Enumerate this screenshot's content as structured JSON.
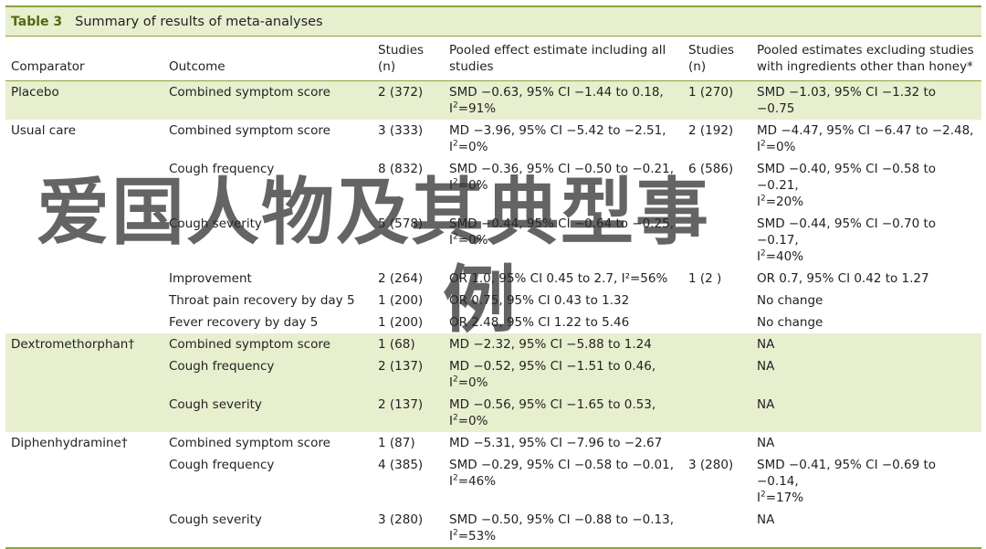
{
  "caption": {
    "label": "Table 3",
    "title": "Summary of results of meta-analyses"
  },
  "headers": {
    "comparator": "Comparator",
    "outcome": "Outcome",
    "studies": "Studies (n)",
    "pooled_all": "Pooled effect estimate including all studies",
    "studies_excl": "Studies (n)",
    "pooled_excl": "Pooled estimates excluding studies with ingredients other than honey*"
  },
  "rows": [
    {
      "comparator": "Placebo",
      "outcome": "Combined symptom score",
      "studies": "2 (372)",
      "pooled_all": "SMD −0.63, 95% CI −1.44 to 0.18,",
      "i2_all": "=91%",
      "studies_excl": "1 (270)",
      "pooled_excl": "SMD −1.03, 95% CI −1.32 to −0.75",
      "i2_excl": "",
      "shade": true
    },
    {
      "comparator": "Usual care",
      "outcome": "Combined symptom score",
      "studies": "3 (333)",
      "pooled_all": "MD −3.96, 95% CI −5.42 to −2.51,",
      "i2_all": "=0%",
      "studies_excl": "2 (192)",
      "pooled_excl": "MD −4.47, 95% CI −6.47 to −2.48,",
      "i2_excl": "=0%",
      "shade": false
    },
    {
      "comparator": "",
      "outcome": "Cough frequency",
      "studies": "8 (832)",
      "pooled_all": "SMD −0.36, 95% CI −0.50 to −0.21,",
      "i2_all": "=0%",
      "studies_excl": "6 (586)",
      "pooled_excl": "SMD −0.40, 95% CI −0.58 to −0.21,",
      "i2_excl": "=20%",
      "shade": false
    },
    {
      "comparator": "",
      "outcome": "Cough severity",
      "studies": "5 (578)",
      "pooled_all": "SMD −0.44, 95% CI −0.64 to −0.25,",
      "i2_all": "=0%",
      "studies_excl": "",
      "pooled_excl": "SMD −0.44, 95% CI −0.70 to −0.17,",
      "i2_excl": "=40%",
      "shade": false
    },
    {
      "comparator": "",
      "outcome": "Improvement",
      "studies": "2 (264)",
      "pooled_all": "OR 1.0, 95% CI 0.45 to 2.7, I²=56%",
      "i2_all": "",
      "studies_excl": "1 (2  )",
      "pooled_excl": "OR 0.7, 95% CI 0.42 to 1.27",
      "i2_excl": "",
      "shade": false
    },
    {
      "comparator": "",
      "outcome": "Throat pain recovery by day 5",
      "studies": "1 (200)",
      "pooled_all": "OR 0.75, 95% CI 0.43 to 1.32",
      "i2_all": "",
      "studies_excl": "",
      "pooled_excl": "No change",
      "i2_excl": "",
      "shade": false
    },
    {
      "comparator": "",
      "outcome": "Fever recovery by day 5",
      "studies": "1 (200)",
      "pooled_all": "OR 2.48, 95% CI 1.22 to 5.46",
      "i2_all": "",
      "studies_excl": "",
      "pooled_excl": "No change",
      "i2_excl": "",
      "shade": false
    },
    {
      "comparator": "Dextromethorphan†",
      "outcome": "Combined symptom score",
      "studies": "1 (68)",
      "pooled_all": "MD −2.32, 95% CI −5.88 to 1.24",
      "i2_all": "",
      "studies_excl": "",
      "pooled_excl": "NA",
      "i2_excl": "",
      "shade": true
    },
    {
      "comparator": "",
      "outcome": "Cough frequency",
      "studies": "2 (137)",
      "pooled_all": "MD −0.52, 95% CI −1.51 to 0.46,",
      "i2_all": "=0%",
      "studies_excl": "",
      "pooled_excl": "NA",
      "i2_excl": "",
      "shade": true
    },
    {
      "comparator": "",
      "outcome": "Cough severity",
      "studies": "2 (137)",
      "pooled_all": "MD −0.56, 95% CI −1.65 to 0.53,",
      "i2_all": "=0%",
      "studies_excl": "",
      "pooled_excl": "NA",
      "i2_excl": "",
      "shade": true
    },
    {
      "comparator": "Diphenhydramine†",
      "outcome": "Combined symptom score",
      "studies": "1 (87)",
      "pooled_all": "MD −5.31, 95% CI −7.96 to −2.67",
      "i2_all": "",
      "studies_excl": "",
      "pooled_excl": "NA",
      "i2_excl": "",
      "shade": false
    },
    {
      "comparator": "",
      "outcome": "Cough frequency",
      "studies": "4 (385)",
      "pooled_all": "SMD −0.29, 95% CI −0.58 to −0.01,",
      "i2_all": "=46%",
      "studies_excl": "3 (280)",
      "pooled_excl": "SMD −0.41, 95% CI −0.69 to −0.14,",
      "i2_excl": "=17%",
      "shade": false
    },
    {
      "comparator": "",
      "outcome": "Cough severity",
      "studies": "3 (280)",
      "pooled_all": "SMD −0.50, 95% CI −0.88 to −0.13,",
      "i2_all": "=53%",
      "studies_excl": "",
      "pooled_excl": "NA",
      "i2_excl": "",
      "shade": false
    }
  ],
  "i2_symbol": "I",
  "i2_sup": "2",
  "watermark": {
    "line1": "爱国人物及其典型事",
    "line2": "例"
  }
}
